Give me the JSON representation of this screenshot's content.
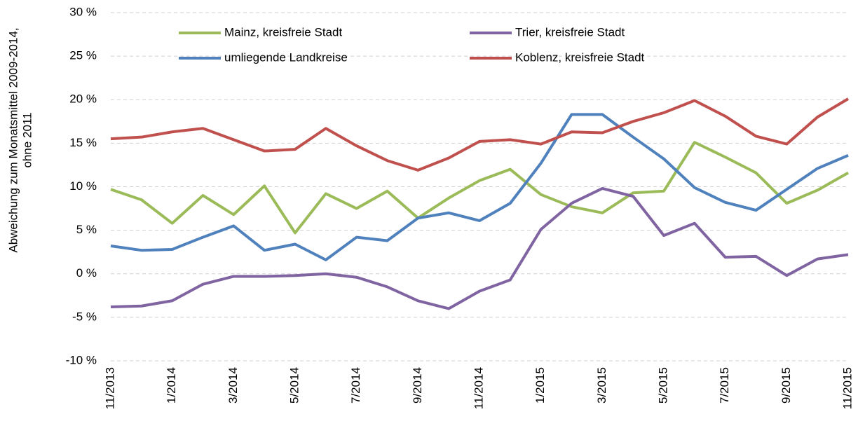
{
  "chart_data": {
    "type": "line",
    "y_label": [
      "Abweichung zum Monatsmittel 2009-2014,",
      "ohne 2011"
    ],
    "categories": [
      "11/2013",
      null,
      "1/2014",
      null,
      "3/2014",
      null,
      "5/2014",
      null,
      "7/2014",
      null,
      "9/2014",
      null,
      "11/2014",
      null,
      "1/2015",
      null,
      "3/2015",
      null,
      "5/2015",
      null,
      "7/2015",
      null,
      "9/2015",
      null,
      "11/2015"
    ],
    "series": [
      {
        "name": "Mainz, kreisfreie Stadt",
        "color": "#9bbb59",
        "values": [
          9.7,
          8.5,
          5.8,
          9.0,
          6.8,
          10.1,
          4.7,
          9.2,
          7.5,
          9.5,
          6.4,
          8.7,
          10.7,
          12.0,
          9.1,
          7.7,
          7.0,
          9.3,
          9.5,
          15.1,
          13.4,
          11.6,
          8.1,
          9.6,
          11.6
        ]
      },
      {
        "name": "Trier, kreisfreie Stadt",
        "color": "#8064a2",
        "values": [
          -3.8,
          -3.7,
          -3.1,
          -1.2,
          -0.3,
          -0.3,
          -0.2,
          0.0,
          -0.4,
          -1.5,
          -3.1,
          -4.0,
          -2.0,
          -0.7,
          5.1,
          8.1,
          9.8,
          8.9,
          4.4,
          5.8,
          1.9,
          2.0,
          -0.2,
          1.7,
          2.2
        ]
      },
      {
        "name": "umliegende Landkreise",
        "color": "#4f81bd",
        "values": [
          3.2,
          2.7,
          2.8,
          4.2,
          5.5,
          2.7,
          3.4,
          1.6,
          4.2,
          3.8,
          6.4,
          7.0,
          6.1,
          8.1,
          12.7,
          18.3,
          18.3,
          15.7,
          13.2,
          9.9,
          8.2,
          7.3,
          9.7,
          12.1,
          13.6
        ]
      },
      {
        "name": "Koblenz, kreisfreie Stadt",
        "color": "#c0504d",
        "values": [
          15.5,
          15.7,
          16.3,
          16.7,
          15.4,
          14.1,
          14.3,
          16.7,
          14.7,
          13.0,
          11.9,
          13.3,
          15.2,
          15.4,
          14.9,
          16.3,
          16.2,
          17.5,
          18.5,
          19.9,
          18.1,
          15.8,
          14.9,
          18.0,
          20.1
        ]
      }
    ],
    "ylim": [
      -10,
      30
    ],
    "yticks": [
      {
        "value": -10,
        "label": "-10 %"
      },
      {
        "value": -5,
        "label": "-5 %"
      },
      {
        "value": 0,
        "label": "0 %"
      },
      {
        "value": 5,
        "label": "5 %"
      },
      {
        "value": 10,
        "label": "10 %"
      },
      {
        "value": 15,
        "label": "15 %"
      },
      {
        "value": 20,
        "label": "20 %"
      },
      {
        "value": 25,
        "label": "25 %"
      },
      {
        "value": 30,
        "label": "30 %"
      }
    ],
    "grid": true,
    "legend": "top"
  }
}
